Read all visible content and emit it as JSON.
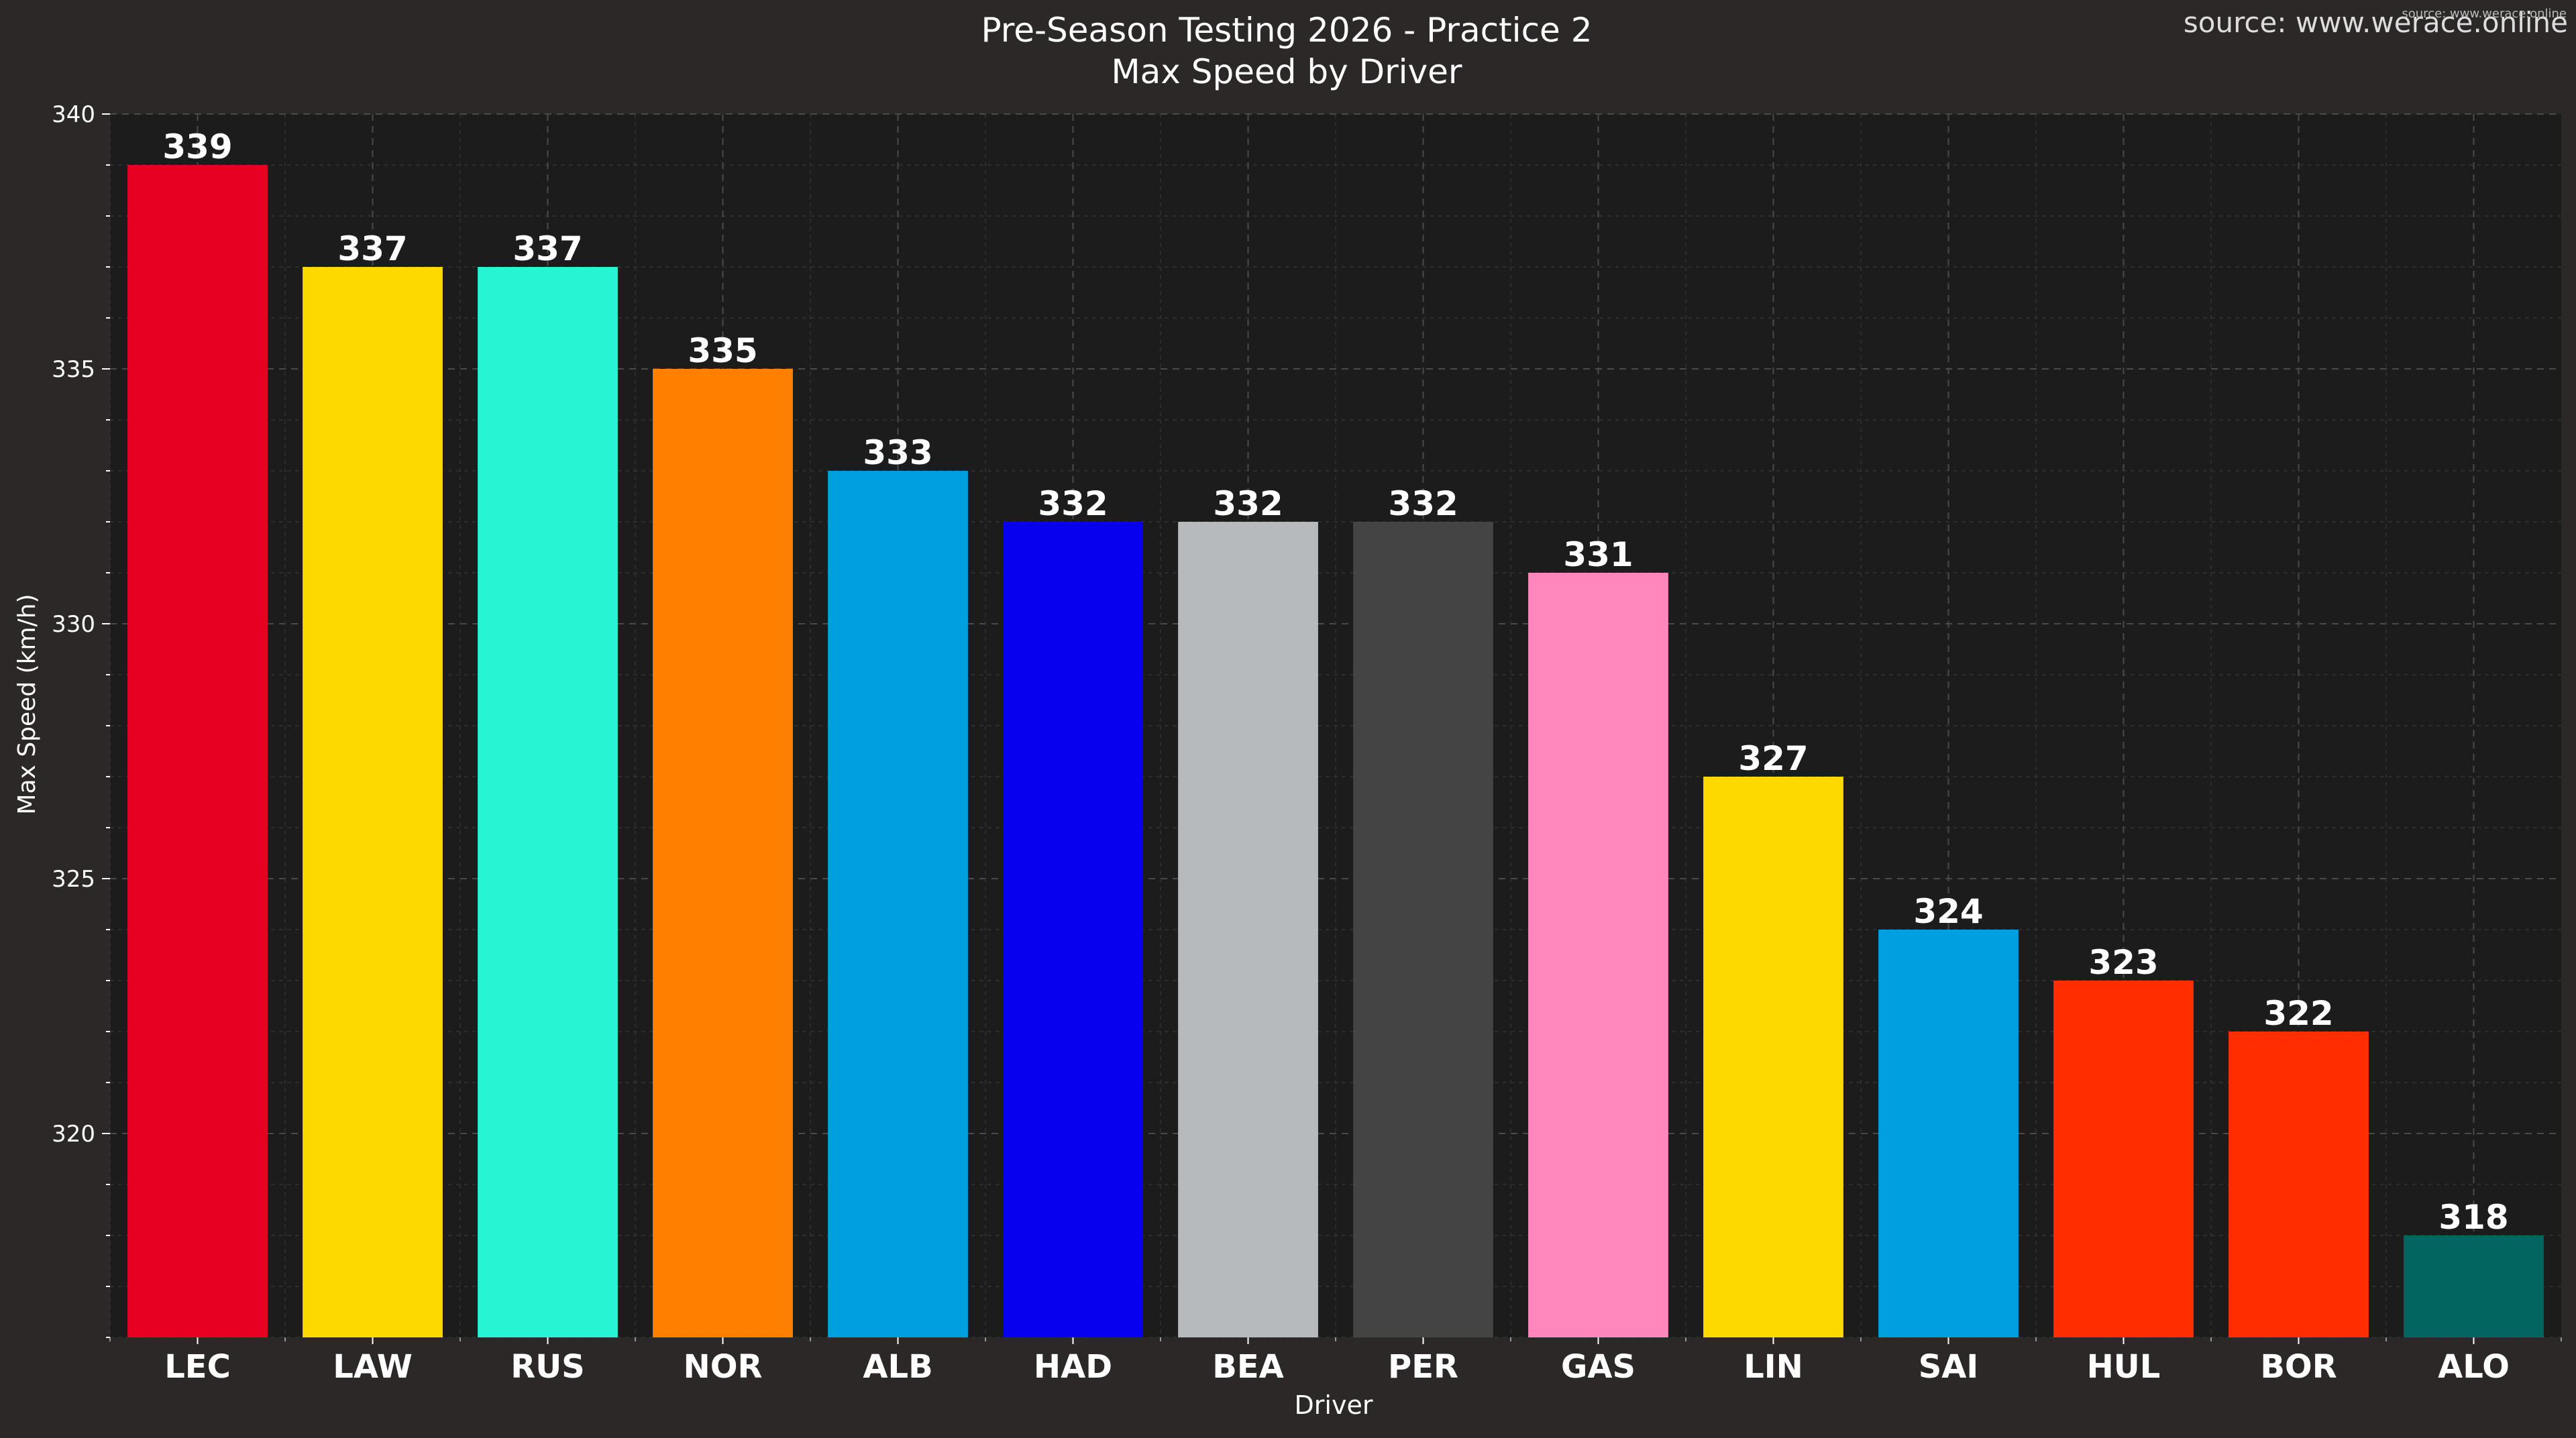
{
  "chart_data": {
    "type": "bar",
    "title": "Pre-Season Testing 2026 - Practice 2",
    "subtitle": "Max Speed by Driver",
    "source": "source: www.werace.online",
    "watermark": "source: www.werace.online",
    "xlabel": "Driver",
    "ylabel": "Max Speed (km/h)",
    "ylim": [
      316,
      340
    ],
    "yticks": [
      320,
      325,
      330,
      335,
      340
    ],
    "grid": true,
    "categories": [
      "LEC",
      "LAW",
      "RUS",
      "NOR",
      "ALB",
      "HAD",
      "BEA",
      "PER",
      "GAS",
      "LIN",
      "SAI",
      "HUL",
      "BOR",
      "ALO"
    ],
    "values": [
      339,
      337,
      337,
      335,
      333,
      332,
      332,
      332,
      331,
      327,
      324,
      323,
      322,
      318
    ],
    "colors": [
      "#e80020",
      "#fdd900",
      "#27f4d2",
      "#ff8000",
      "#00a0de",
      "#0600ef",
      "#b6babd",
      "#444444",
      "#ff87bc",
      "#fdd900",
      "#00a0de",
      "#ff2d00",
      "#ff2d00",
      "#00665f"
    ]
  },
  "theme": {
    "page_bg": "#2b2827",
    "plot_bg": "#1c1c1c",
    "text": "#ffffff",
    "tick_text": "#ffffff",
    "grid": "#4a4a4a"
  }
}
